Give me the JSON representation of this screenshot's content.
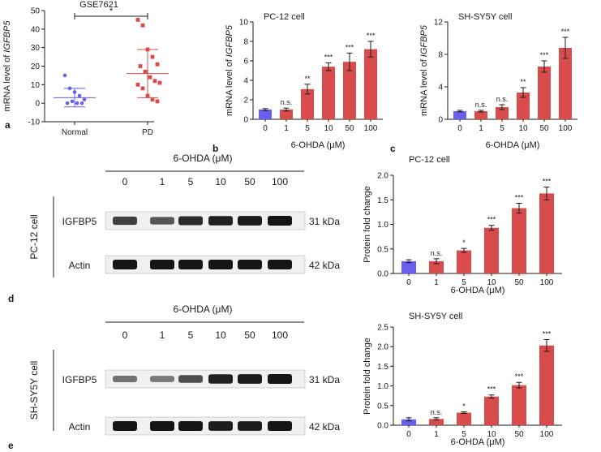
{
  "colors": {
    "bar_red": "#d94c4c",
    "bar_blue": "#6a5ef0",
    "scatter_blue": "#6a5ef0",
    "scatter_red": "#d94c4c",
    "axis": "#1a1a1a",
    "band": "#151515",
    "membrane": "#f0f0f0"
  },
  "panel_labels": {
    "a": "a",
    "b": "b",
    "c": "c",
    "d": "d",
    "e": "e"
  },
  "blots": [
    {
      "header": "6-OHDA (μM)",
      "concentrations": [
        "0",
        "1",
        "5",
        "10",
        "50",
        "100"
      ],
      "cell_line": "PC-12 cell",
      "bands": [
        {
          "protein": "IGFBP5",
          "size": "31 kDa",
          "intensity": [
            0.7,
            0.55,
            0.85,
            0.92,
            0.95,
            1.0
          ]
        },
        {
          "protein": "Actin",
          "size": "42 kDa",
          "intensity": [
            1.0,
            1.0,
            1.0,
            1.0,
            1.0,
            1.0
          ]
        }
      ]
    },
    {
      "header": "6-OHDA (μM)",
      "concentrations": [
        "0",
        "1",
        "5",
        "10",
        "50",
        "100"
      ],
      "cell_line": "SH-SY5Y cell",
      "bands": [
        {
          "protein": "IGFBP5",
          "size": "31 kDa",
          "intensity": [
            0.35,
            0.3,
            0.6,
            0.92,
            0.95,
            1.0
          ]
        },
        {
          "protein": "Actin",
          "size": "42 kDa",
          "intensity": [
            1.0,
            1.0,
            1.0,
            0.95,
            0.95,
            1.0
          ]
        }
      ]
    }
  ],
  "chart_data": [
    {
      "type": "scatter",
      "panel": "a",
      "title": "GSE7621",
      "ylabel": "mRNA level of IGFBP5",
      "ylabel_prefix": "mRNA level of ",
      "ylabel_gene": "IGFBP5",
      "ylim": [
        -10,
        50
      ],
      "yticks": [
        "-10",
        "0",
        "10",
        "20",
        "30",
        "40",
        "50"
      ],
      "yticks_values": [
        -10,
        0,
        10,
        20,
        30,
        40,
        50
      ],
      "categories": [
        "Normal",
        "PD"
      ],
      "groups": [
        {
          "name": "Normal",
          "values": [
            15,
            8,
            6,
            4,
            2,
            0,
            1,
            0,
            0
          ],
          "mean": 3,
          "sd": 5,
          "marker": "circle"
        },
        {
          "name": "PD",
          "values": [
            45,
            42,
            29,
            25,
            21,
            20,
            17,
            14,
            12,
            11,
            10,
            8,
            4,
            2,
            1
          ],
          "mean": 16,
          "sd": 13,
          "marker": "square"
        }
      ],
      "significance": "*"
    },
    {
      "type": "bar",
      "panel": "b",
      "title": "PC-12 cell",
      "xlabel": "6-OHDA (μM)",
      "ylabel": "mRNA level of IGFBP5",
      "ylabel_prefix": "mRNA level of ",
      "ylabel_gene": "IGFBP5",
      "ylim": [
        0,
        10
      ],
      "yticks": [
        "0",
        "2",
        "4",
        "6",
        "8",
        "10"
      ],
      "yticks_values": [
        0,
        2,
        4,
        6,
        8,
        10
      ],
      "categories": [
        "0",
        "1",
        "5",
        "10",
        "50",
        "100"
      ],
      "values": [
        1.0,
        1.0,
        3.1,
        5.4,
        5.9,
        7.2
      ],
      "errors": [
        0.1,
        0.15,
        0.5,
        0.4,
        0.9,
        0.8
      ],
      "significance": [
        "",
        "n.s.",
        "**",
        "***",
        "***",
        "***"
      ]
    },
    {
      "type": "bar",
      "panel": "c",
      "title": "SH-SY5Y cell",
      "xlabel": "6-OHDA (μM)",
      "ylabel": "mRNA level of IGFBP5",
      "ylabel_prefix": "mRNA level of ",
      "ylabel_gene": "IGFBP5",
      "ylim": [
        0,
        12
      ],
      "yticks": [
        "0",
        "4",
        "8",
        "12"
      ],
      "yticks_values": [
        0,
        4,
        8,
        12
      ],
      "categories": [
        "0",
        "1",
        "5",
        "10",
        "50",
        "100"
      ],
      "values": [
        1.0,
        1.0,
        1.5,
        3.3,
        6.5,
        8.8
      ],
      "errors": [
        0.1,
        0.1,
        0.3,
        0.6,
        0.7,
        1.3
      ],
      "significance": [
        "",
        "n.s.",
        "n.s.",
        "**",
        "***",
        "***"
      ]
    },
    {
      "type": "bar",
      "panel": "d",
      "title": "PC-12 cell",
      "xlabel": "6-OHDA (μM)",
      "ylabel": "Protein fold change",
      "ylim": [
        0,
        2.0
      ],
      "yticks": [
        "0.0",
        "0.5",
        "1.0",
        "1.5",
        "2.0"
      ],
      "yticks_values": [
        0,
        0.5,
        1.0,
        1.5,
        2.0
      ],
      "categories": [
        "0",
        "1",
        "5",
        "10",
        "50",
        "100"
      ],
      "values": [
        0.25,
        0.25,
        0.47,
        0.93,
        1.33,
        1.63
      ],
      "errors": [
        0.03,
        0.05,
        0.04,
        0.05,
        0.1,
        0.13
      ],
      "significance": [
        "",
        "n.s.",
        "*",
        "***",
        "***",
        "***"
      ]
    },
    {
      "type": "bar",
      "panel": "e",
      "title": "SH-SY5Y cell",
      "xlabel": "6-OHDA (μM)",
      "ylabel": "Protein fold change",
      "ylim": [
        0,
        2.5
      ],
      "yticks": [
        "0.0",
        "0.5",
        "1.0",
        "1.5",
        "2.0",
        "2.5"
      ],
      "yticks_values": [
        0,
        0.5,
        1.0,
        1.5,
        2.0,
        2.5
      ],
      "categories": [
        "0",
        "1",
        "5",
        "10",
        "50",
        "100"
      ],
      "values": [
        0.15,
        0.16,
        0.32,
        0.73,
        1.02,
        2.03
      ],
      "errors": [
        0.04,
        0.03,
        0.02,
        0.04,
        0.07,
        0.15
      ],
      "significance": [
        "",
        "n.s.",
        "*",
        "***",
        "***",
        "***"
      ]
    }
  ]
}
